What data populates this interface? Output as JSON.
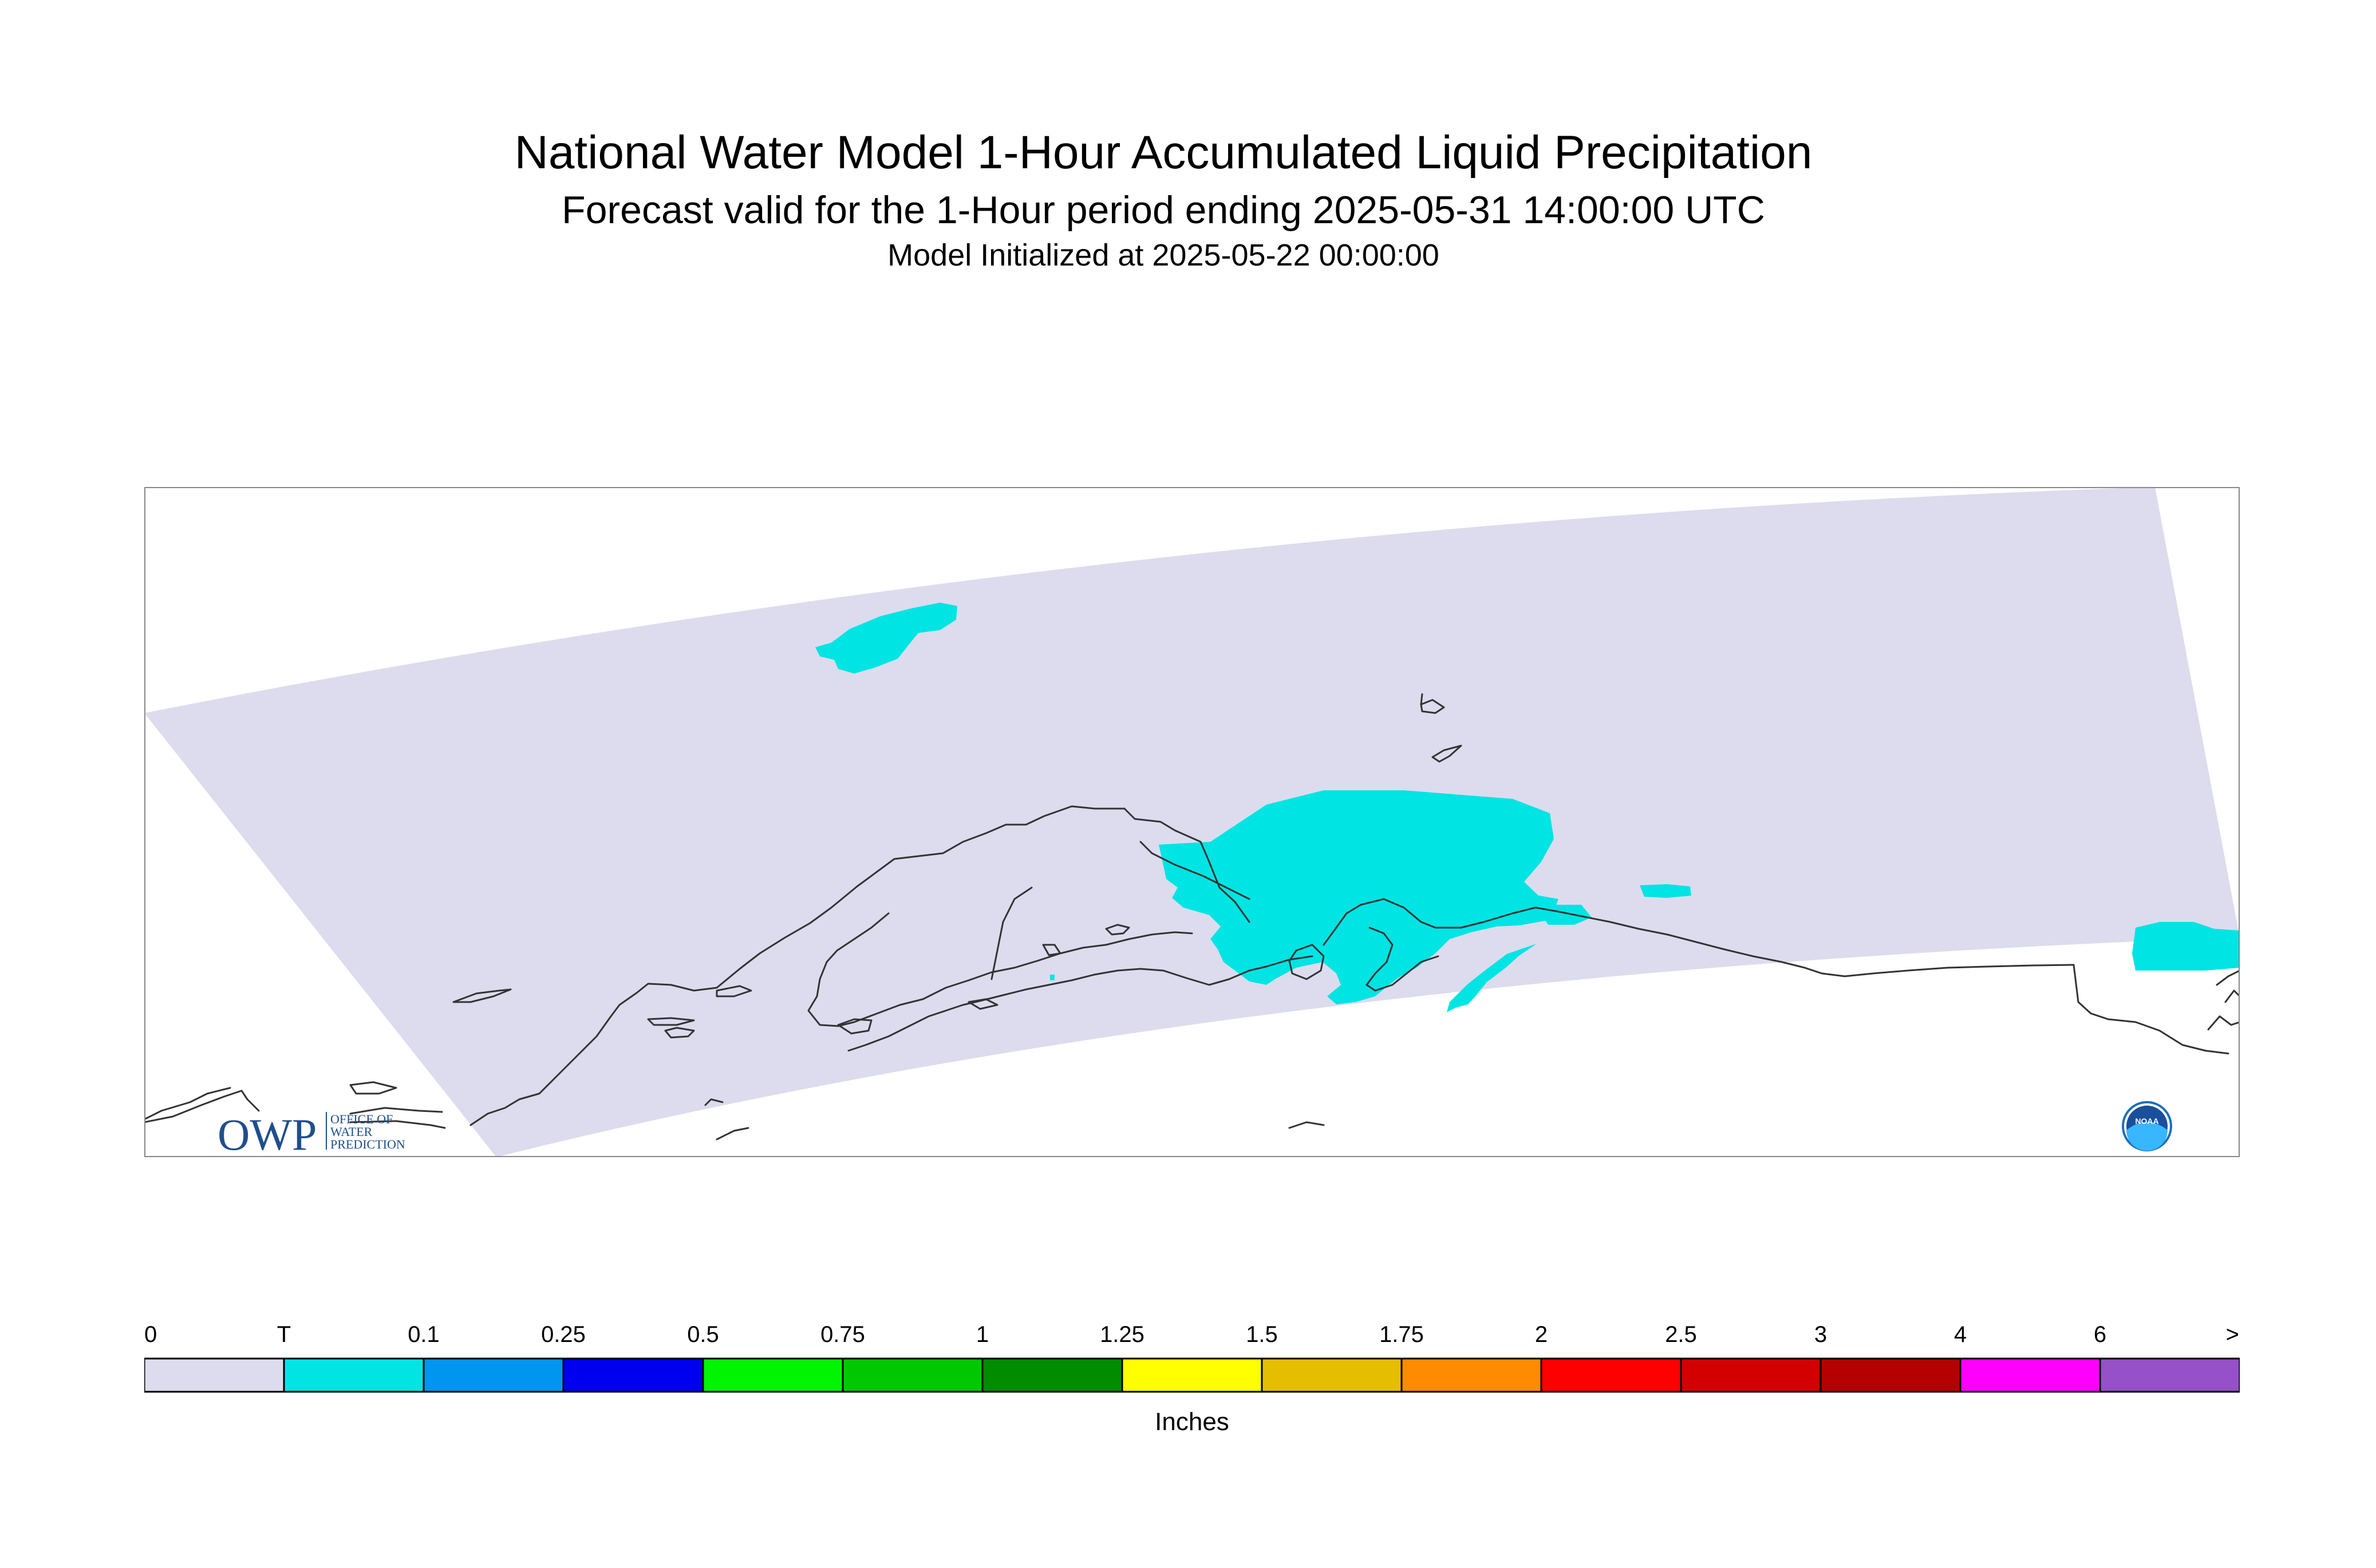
{
  "title": "National Water Model 1-Hour Accumulated Liquid Precipitation",
  "subtitle": "Forecast valid for the 1-Hour period ending 2025-05-31 14:00:00 UTC",
  "init_line": "Model Initialized at 2025-05-22 00:00:00",
  "logos": {
    "owp_abbrev": "OWP",
    "owp_line1": "OFFICE OF",
    "owp_line2": "WATER",
    "owp_line3": "PREDICTION",
    "noaa": "NOAA"
  },
  "colors": {
    "domain": "#dcdcee",
    "precip_trace": "#00e4e4",
    "coast": "#333333",
    "frame": "#888888"
  },
  "colorbar": {
    "units": "Inches",
    "tick_labels": [
      "0",
      "T",
      "0.1",
      "0.25",
      "0.5",
      "0.75",
      "1",
      "1.25",
      "1.5",
      "1.75",
      "2",
      "2.5",
      "3",
      "4",
      "6",
      ">"
    ],
    "bins": [
      {
        "color": "#dcdcee"
      },
      {
        "color": "#00e4e4"
      },
      {
        "color": "#0096f0"
      },
      {
        "color": "#0000f0"
      },
      {
        "color": "#00f500"
      },
      {
        "color": "#00c800"
      },
      {
        "color": "#008c00"
      },
      {
        "color": "#ffff00"
      },
      {
        "color": "#e6be00"
      },
      {
        "color": "#ff8c00"
      },
      {
        "color": "#ff0000"
      },
      {
        "color": "#d20000"
      },
      {
        "color": "#b40000"
      },
      {
        "color": "#ff00ff"
      },
      {
        "color": "#9650c8"
      }
    ]
  }
}
